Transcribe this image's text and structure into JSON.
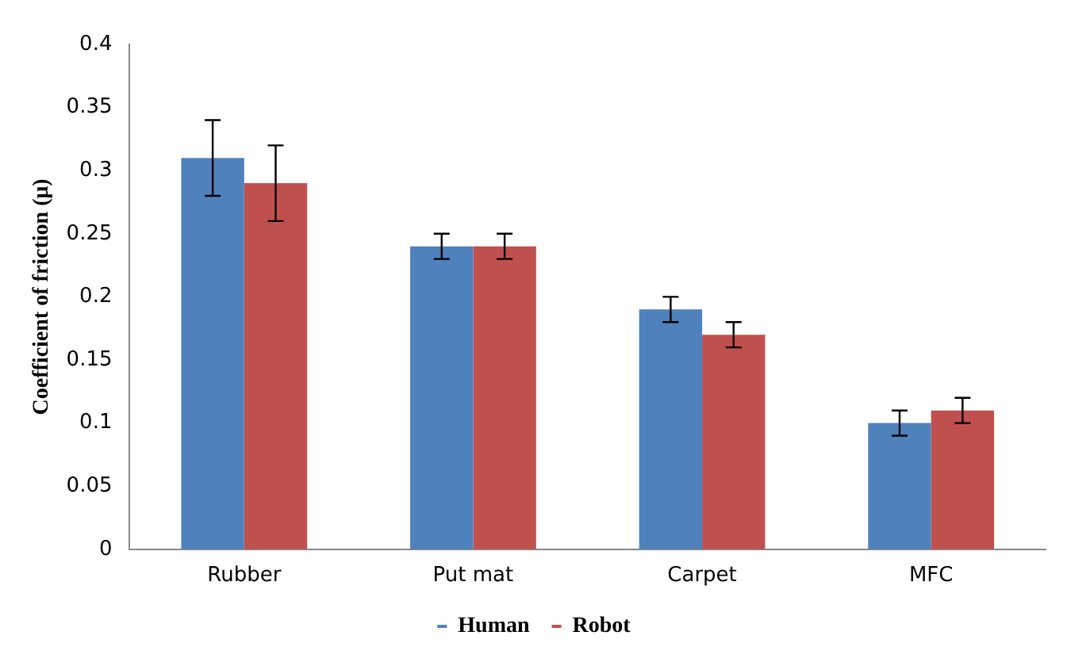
{
  "chart_data": {
    "type": "bar",
    "ylabel": "Coefficient of friction (μ)",
    "categories": [
      "Rubber",
      "Put mat",
      "Carpet",
      "MFC"
    ],
    "series": [
      {
        "name": "Human",
        "color": "#4f81bd",
        "values": [
          0.31,
          0.24,
          0.19,
          0.1
        ],
        "errors": [
          0.03,
          0.01,
          0.01,
          0.01
        ]
      },
      {
        "name": "Robot",
        "color": "#c0504d",
        "values": [
          0.29,
          0.24,
          0.17,
          0.11
        ],
        "errors": [
          0.03,
          0.01,
          0.01,
          0.01
        ]
      }
    ],
    "ylim": [
      0,
      0.4
    ],
    "yticks": [
      0,
      0.05,
      0.1,
      0.15,
      0.2,
      0.25,
      0.3,
      0.35,
      0.4
    ],
    "grid": false,
    "legend": "bottom"
  }
}
